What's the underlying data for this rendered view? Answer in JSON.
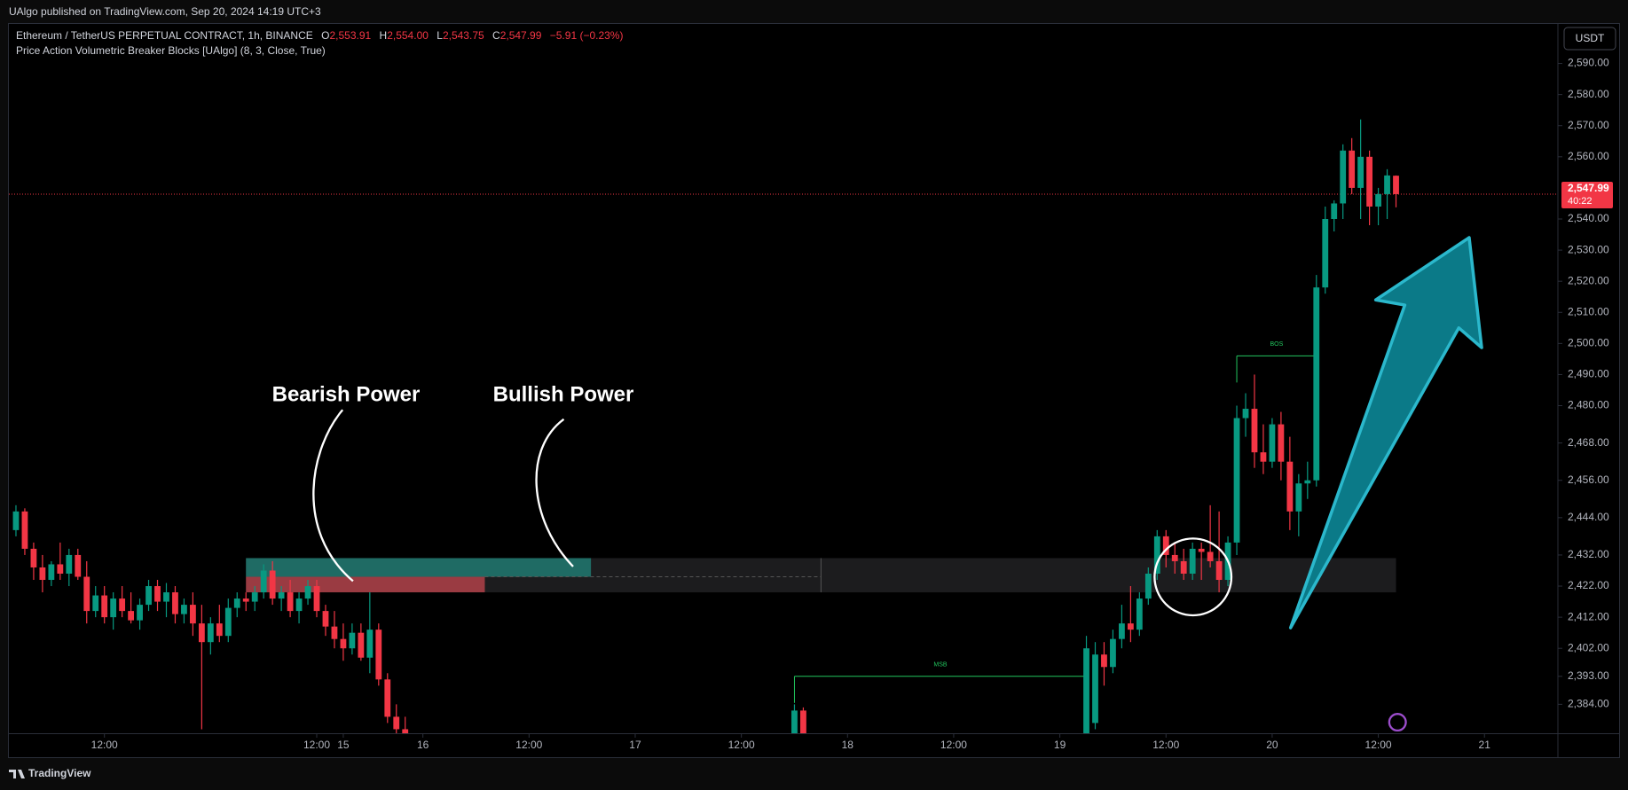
{
  "chart_data": {
    "type": "candlestick",
    "publisher": "UAlgo published on TradingView.com, Sep 20, 2024 14:19 UTC+3",
    "symbol": "Ethereum / TetherUS PERPETUAL CONTRACT, 1h, BINANCE",
    "ohlc_legend": [
      {
        "key": "O",
        "value": "2,553.91"
      },
      {
        "key": "H",
        "value": "2,554.00"
      },
      {
        "key": "L",
        "value": "2,543.75"
      },
      {
        "key": "C",
        "value": "2,547.99"
      }
    ],
    "change": "−5.91 (−0.23%)",
    "indicator": "Price Action Volumetric Breaker Blocks [UAlgo] (8, 3, Close, True)",
    "currency": "USDT",
    "brand": "TradingView",
    "annotations": [
      "Bearish Power",
      "Bullish Power"
    ],
    "up_color": "#089981",
    "down_color": "#f23645",
    "x": [
      -22,
      -21,
      -20,
      -19,
      -18,
      -17,
      -16,
      -15,
      -14,
      -13,
      -12,
      -11,
      -10,
      -9,
      -8,
      -7,
      -6,
      -5,
      -4,
      -3,
      -2,
      -1,
      0,
      1,
      2,
      3,
      4,
      5,
      6,
      7,
      8,
      9,
      10,
      11,
      12,
      13,
      14,
      15,
      16,
      17,
      18,
      19,
      20,
      21,
      22,
      66,
      67,
      99,
      100,
      101,
      102,
      103,
      104,
      105,
      106,
      107,
      108,
      109,
      110,
      111,
      112,
      113,
      114,
      115,
      116,
      117,
      118,
      119,
      120,
      121,
      122,
      123,
      124,
      125,
      126,
      127,
      128,
      129,
      130,
      131,
      132,
      133,
      134
    ],
    "open": [
      2440,
      2446,
      2434,
      2428,
      2424,
      2429,
      2426,
      2432,
      2425,
      2414,
      2419,
      2412,
      2418,
      2414,
      2411,
      2416,
      2422,
      2417,
      2420,
      2413,
      2416,
      2410,
      2404,
      2410,
      2406,
      2415,
      2418,
      2417,
      2420,
      2427,
      2418,
      2420,
      2414,
      2418,
      2422,
      2414,
      2409,
      2405,
      2402,
      2407,
      2399,
      2408,
      2392,
      2380,
      2376,
      2374,
      2382,
      2372,
      2378,
      2400,
      2396,
      2405,
      2410,
      2408,
      2418,
      2426,
      2438,
      2432,
      2430,
      2426,
      2434,
      2433,
      2430,
      2424,
      2436,
      2476,
      2479,
      2465,
      2462,
      2474,
      2462,
      2446,
      2455,
      2456,
      2518,
      2540,
      2545,
      2562,
      2550,
      2560,
      2544,
      2548,
      2553.91
    ],
    "high": [
      2448,
      2447,
      2436,
      2432,
      2430,
      2436,
      2434,
      2434,
      2430,
      2422,
      2422,
      2420,
      2422,
      2420,
      2418,
      2424,
      2424,
      2423,
      2422,
      2418,
      2420,
      2416,
      2412,
      2416,
      2418,
      2420,
      2420,
      2422,
      2429,
      2430,
      2422,
      2424,
      2420,
      2424,
      2424,
      2416,
      2414,
      2410,
      2410,
      2410,
      2420,
      2410,
      2394,
      2384,
      2380,
      2384,
      2383,
      2406,
      2404,
      2404,
      2408,
      2416,
      2422,
      2420,
      2428,
      2440,
      2440,
      2436,
      2434,
      2436,
      2436,
      2448,
      2446,
      2438,
      2480,
      2484,
      2490,
      2474,
      2476,
      2478,
      2470,
      2458,
      2462,
      2522,
      2544,
      2546,
      2564,
      2566,
      2572,
      2562,
      2550,
      2556,
      2554
    ],
    "low": [
      2438,
      2432,
      2424,
      2420,
      2422,
      2424,
      2422,
      2424,
      2410,
      2412,
      2410,
      2408,
      2412,
      2410,
      2408,
      2414,
      2414,
      2412,
      2410,
      2410,
      2406,
      2376,
      2400,
      2404,
      2404,
      2412,
      2414,
      2414,
      2418,
      2416,
      2414,
      2412,
      2410,
      2416,
      2412,
      2406,
      2402,
      2398,
      2400,
      2398,
      2394,
      2390,
      2378,
      2372,
      2370,
      2370,
      2370,
      2370,
      2376,
      2390,
      2394,
      2402,
      2404,
      2406,
      2416,
      2424,
      2428,
      2426,
      2424,
      2424,
      2424,
      2428,
      2420,
      2422,
      2432,
      2470,
      2460,
      2458,
      2460,
      2456,
      2440,
      2438,
      2450,
      2454,
      2516,
      2536,
      2540,
      2548,
      2540,
      2538,
      2538,
      2540,
      2543.75
    ],
    "close": [
      2446,
      2434,
      2428,
      2424,
      2429,
      2426,
      2432,
      2425,
      2414,
      2419,
      2412,
      2418,
      2414,
      2411,
      2416,
      2422,
      2417,
      2420,
      2413,
      2416,
      2410,
      2404,
      2410,
      2406,
      2415,
      2418,
      2417,
      2420,
      2427,
      2418,
      2420,
      2414,
      2418,
      2422,
      2414,
      2409,
      2405,
      2402,
      2407,
      2399,
      2408,
      2392,
      2380,
      2376,
      2373,
      2382,
      2372,
      2402,
      2400,
      2396,
      2405,
      2410,
      2408,
      2418,
      2426,
      2438,
      2432,
      2430,
      2426,
      2434,
      2433,
      2430,
      2424,
      2436,
      2476,
      2479,
      2465,
      2462,
      2474,
      2462,
      2446,
      2455,
      2456,
      2518,
      2540,
      2545,
      2562,
      2550,
      2560,
      2544,
      2548,
      2554,
      2547.99
    ],
    "breaker_block": {
      "top": 2431,
      "mid": 2425,
      "bottom": 2420,
      "start": 4,
      "end": 134,
      "bullish_end": 43,
      "bearish_end": 31,
      "dashed_end": 69,
      "bullish_color": "#1f6b64",
      "bearish_color": "#9a3b42",
      "zone_color": "#1c1c1e"
    },
    "levels": [
      {
        "label": "BOS",
        "value": 2496,
        "start": 116,
        "end": 125,
        "color": "#22c55e"
      },
      {
        "label": "MSB",
        "value": 2393,
        "start": 66,
        "end": 99,
        "color": "#22c55e"
      }
    ],
    "last_price": {
      "value": 2547.99,
      "label": "2,547.99",
      "countdown": "40:22",
      "color": "#f23645"
    },
    "xlim": [
      -22.8,
      152.2
    ],
    "ylim": [
      2374.7,
      2602.7
    ],
    "xticks": [
      {
        "value": -12,
        "label": "12:00"
      },
      15,
      {
        "value": 12,
        "label": "12:00"
      },
      {
        "value": 24,
        "label": "16"
      },
      {
        "value": 36,
        "label": "12:00"
      },
      {
        "value": 48,
        "label": "17"
      },
      {
        "value": 60,
        "label": "12:00"
      },
      {
        "value": 72,
        "label": "18"
      },
      {
        "value": 84,
        "label": "12:00"
      },
      {
        "value": 96,
        "label": "19"
      },
      {
        "value": 108,
        "label": "12:00"
      },
      {
        "value": 120,
        "label": "20"
      },
      {
        "value": 132,
        "label": "12:00"
      },
      {
        "value": 144,
        "label": "21"
      }
    ],
    "yticks": [
      {
        "value": 2590,
        "label": "2,590.00"
      },
      {
        "value": 2580,
        "label": "2,580.00"
      },
      {
        "value": 2570,
        "label": "2,570.00"
      },
      {
        "value": 2560,
        "label": "2,560.00"
      },
      {
        "value": 2540,
        "label": "2,540.00"
      },
      {
        "value": 2530,
        "label": "2,530.00"
      },
      {
        "value": 2520,
        "label": "2,520.00"
      },
      {
        "value": 2510,
        "label": "2,510.00"
      },
      {
        "value": 2500,
        "label": "2,500.00"
      },
      {
        "value": 2490,
        "label": "2,490.00"
      },
      {
        "value": 2480,
        "label": "2,480.00"
      },
      {
        "value": 2468,
        "label": "2,468.00"
      },
      {
        "value": 2456,
        "label": "2,456.00"
      },
      {
        "value": 2444,
        "label": "2,444.00"
      },
      {
        "value": 2432,
        "label": "2,432.00"
      },
      {
        "value": 2422,
        "label": "2,422.00"
      },
      {
        "value": 2412,
        "label": "2,412.00"
      },
      {
        "value": 2402,
        "label": "2,402.00"
      },
      {
        "value": 2393,
        "label": "2,393.00"
      },
      {
        "value": 2384,
        "label": "2,384.00"
      }
    ]
  }
}
